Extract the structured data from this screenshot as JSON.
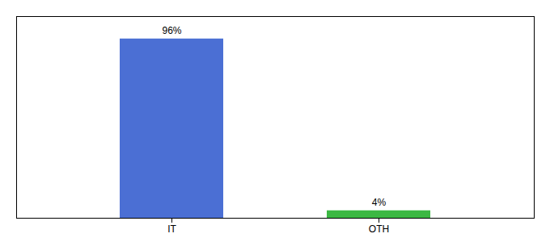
{
  "chart_data": {
    "type": "bar",
    "categories": [
      "IT",
      "OTH"
    ],
    "values": [
      96,
      4
    ],
    "colors": [
      "#4b6fd4",
      "#3cb843"
    ],
    "ylim": [
      0,
      108
    ],
    "data_labels": true,
    "value_labels": [
      "96%",
      "4%"
    ],
    "tick_labels": "x",
    "grid": false
  }
}
